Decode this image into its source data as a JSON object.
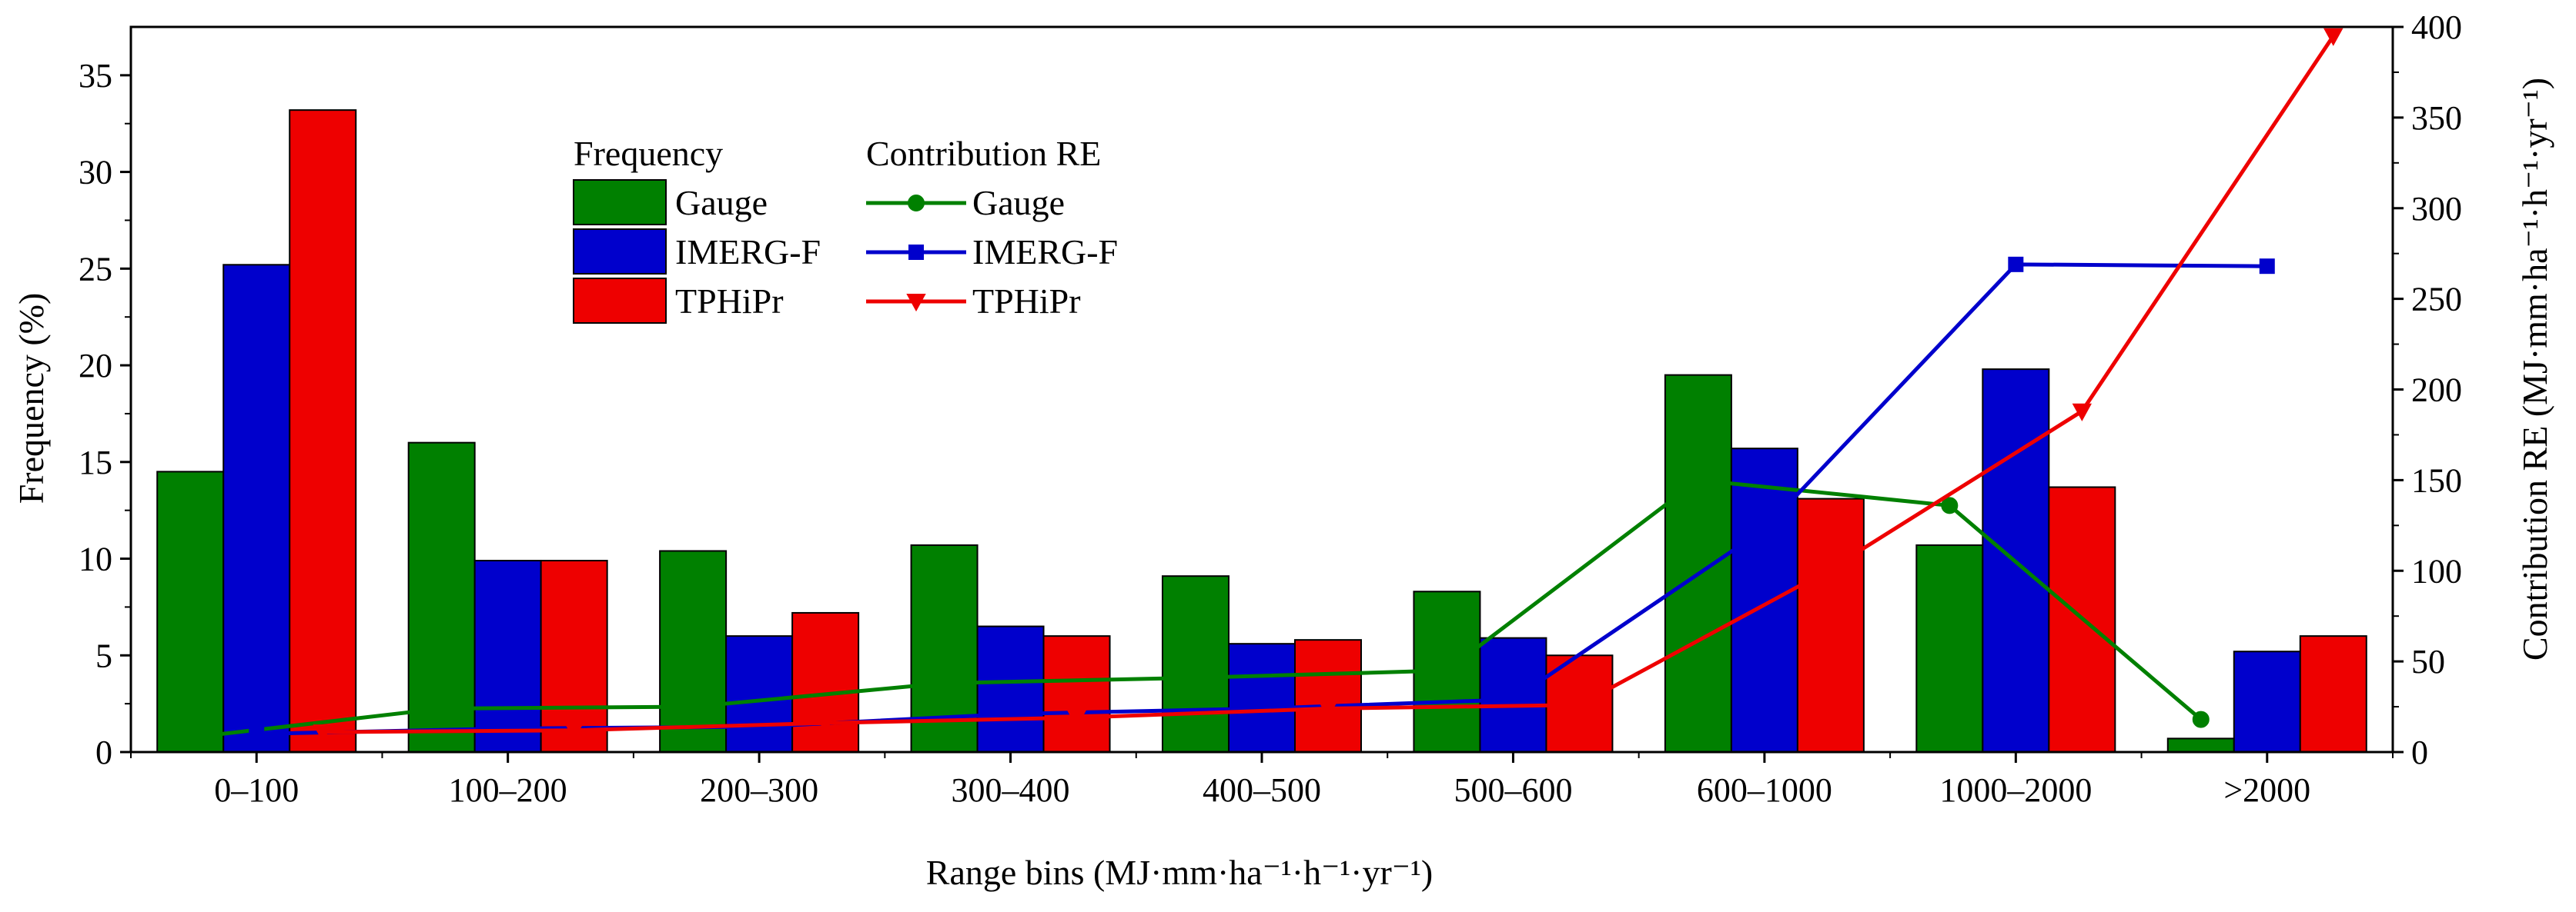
{
  "chart_data": {
    "type": "bar",
    "title": "",
    "xlabel": "Range bins (MJ·mm·ha⁻¹·h⁻¹·yr⁻¹)",
    "ylabel": "Frequency (%)",
    "y2label": "Contribution RE (MJ·mm·ha⁻¹·h⁻¹·yr⁻¹)",
    "ylim": [
      0,
      37.5
    ],
    "y2lim": [
      0,
      400
    ],
    "yticks": [
      0,
      5,
      10,
      15,
      20,
      25,
      30,
      35
    ],
    "y2ticks": [
      0,
      50,
      100,
      150,
      200,
      250,
      300,
      350,
      400
    ],
    "categories": [
      "0–100",
      "100–200",
      "200–300",
      "300–400",
      "400–500",
      "500–600",
      "600–1000",
      "1000–2000",
      ">2000"
    ],
    "bar_series": [
      {
        "name": "Gauge",
        "color": "#008000",
        "values": [
          14.5,
          16.0,
          10.4,
          10.7,
          9.1,
          8.3,
          19.5,
          10.7,
          0.7
        ]
      },
      {
        "name": "IMERG-F",
        "color": "#0000CC",
        "values": [
          25.2,
          9.9,
          6.0,
          6.5,
          5.6,
          5.9,
          15.7,
          19.8,
          5.2
        ]
      },
      {
        "name": "TPHiPr",
        "color": "#EE0000",
        "values": [
          33.2,
          9.9,
          7.2,
          6.0,
          5.8,
          5.0,
          13.1,
          13.7,
          6.0
        ]
      }
    ],
    "line_series": [
      {
        "name": "Gauge",
        "color": "#008000",
        "marker": "circle",
        "values": [
          8,
          24,
          25,
          38,
          41,
          45,
          150,
          136,
          18
        ]
      },
      {
        "name": "IMERG-F",
        "color": "#0000CC",
        "marker": "square",
        "values": [
          10,
          13,
          14,
          21,
          24,
          29,
          123,
          269,
          268
        ]
      },
      {
        "name": "TPHiPr",
        "color": "#EE0000",
        "marker": "triangle-down",
        "values": [
          11,
          12,
          16,
          19,
          24,
          26,
          101,
          188,
          395
        ]
      }
    ],
    "legend": {
      "placement": "top-center",
      "bar_title": "Frequency",
      "line_title": "Contribution RE"
    },
    "grid": false
  }
}
